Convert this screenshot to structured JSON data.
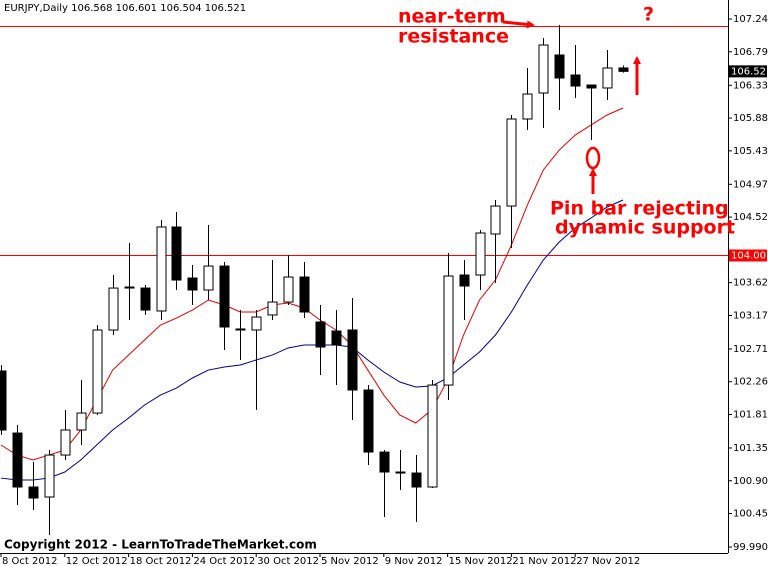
{
  "chart_data": {
    "type": "candlestick",
    "symbol": "EURJPY,Daily",
    "categories": [
      "8 Oct 2012",
      null,
      null,
      null,
      "12 Oct 2012",
      null,
      null,
      null,
      "18 Oct 2012",
      null,
      null,
      null,
      "24 Oct 2012",
      null,
      null,
      null,
      "30 Oct 2012",
      null,
      null,
      null,
      "5 Nov 2012",
      null,
      null,
      null,
      "9 Nov 2012",
      null,
      null,
      null,
      "15 Nov 2012",
      null,
      null,
      null,
      "21 Nov 2012",
      null,
      null,
      null,
      "27 Nov 2012",
      null,
      null,
      null
    ],
    "open": [
      102.407,
      101.555,
      100.814,
      100.677,
      101.253,
      101.597,
      101.83,
      102.97,
      103.546,
      103.546,
      103.231,
      104.384,
      103.684,
      103.519,
      103.848,
      102.984,
      102.97,
      103.176,
      103.354,
      103.697,
      103.08,
      102.956,
      102.97,
      102.146,
      101.294,
      101.02,
      101.006,
      100.814,
      102.214,
      103.725,
      103.725,
      104.288,
      104.672,
      105.867,
      106.224,
      106.746,
      106.471,
      106.334,
      106.293,
      106.568
    ],
    "high": [
      102.489,
      101.665,
      101.157,
      101.322,
      101.871,
      102.283,
      103.038,
      103.725,
      104.164,
      103.588,
      104.48,
      104.59,
      103.862,
      104.411,
      103.903,
      103.244,
      103.244,
      103.931,
      103.999,
      103.903,
      103.313,
      103.244,
      103.409,
      102.214,
      101.322,
      101.322,
      101.253,
      102.283,
      104.027,
      103.931,
      104.343,
      104.755,
      105.922,
      106.567,
      106.979,
      107.158,
      106.883,
      106.334,
      106.814,
      106.601
    ],
    "low": [
      101.528,
      100.567,
      100.498,
      100.155,
      101.185,
      101.391,
      101.803,
      102.901,
      103.107,
      103.176,
      103.107,
      103.519,
      103.313,
      103.382,
      102.695,
      102.558,
      101.873,
      103.107,
      103.313,
      103.134,
      102.352,
      102.214,
      101.734,
      101.116,
      100.402,
      100.773,
      100.333,
      100.8,
      102.009,
      103.107,
      103.519,
      103.615,
      104.096,
      105.716,
      105.743,
      105.99,
      106.155,
      105.579,
      106.128,
      106.504
    ],
    "close": [
      101.597,
      100.814,
      100.663,
      101.253,
      101.597,
      101.83,
      102.97,
      103.546,
      103.56,
      103.244,
      104.384,
      103.656,
      103.519,
      103.848,
      103.011,
      102.97,
      103.148,
      103.354,
      103.697,
      103.217,
      102.736,
      102.764,
      102.146,
      101.294,
      101.02,
      101.006,
      100.814,
      102.214,
      103.711,
      103.574,
      104.302,
      104.672,
      105.867,
      106.21,
      106.883,
      106.43,
      106.32,
      106.293,
      106.567,
      106.521
    ],
    "up_color": "#ffffff",
    "down_color": "#000000",
    "series": [
      {
        "color": "#e00000",
        "values": [
          101.391,
          101.253,
          101.185,
          101.253,
          101.322,
          101.597,
          102.008,
          102.42,
          102.626,
          102.832,
          103.038,
          103.134,
          103.244,
          103.382,
          103.313,
          103.217,
          103.217,
          103.313,
          103.34,
          103.272,
          103.107,
          102.97,
          102.764,
          102.42,
          102.077,
          101.803,
          101.693,
          101.871,
          102.283,
          102.901,
          103.382,
          103.656,
          104.137,
          104.686,
          105.167,
          105.441,
          105.647,
          105.785,
          105.922,
          106.018
        ]
      },
      {
        "color": "#00008b",
        "values": [
          100.937,
          100.91,
          100.91,
          100.937,
          101.02,
          101.185,
          101.391,
          101.597,
          101.761,
          101.94,
          102.077,
          102.173,
          102.311,
          102.42,
          102.462,
          102.489,
          102.558,
          102.626,
          102.723,
          102.764,
          102.764,
          102.764,
          102.736,
          102.558,
          102.393,
          102.256,
          102.187,
          102.201,
          102.311,
          102.489,
          102.668,
          102.901,
          103.217,
          103.588,
          103.931,
          104.178,
          104.37,
          104.508,
          104.659,
          104.755
        ]
      }
    ],
    "hlines": [
      {
        "value": 107.144,
        "color": "#ff0000"
      },
      {
        "value": 104.001,
        "color": "#ff0000",
        "labeled": true
      }
    ],
    "ylim": [
      99.908,
      107.501
    ],
    "yticks": [
      {
        "value": 107.24,
        "label": "107.240"
      },
      {
        "value": 106.79,
        "label": "106.790"
      },
      {
        "value": 106.33,
        "label": "106.330"
      },
      {
        "value": 105.88,
        "label": "105.880"
      },
      {
        "value": 105.43,
        "label": "105.430"
      },
      {
        "value": 104.97,
        "label": "104.970"
      },
      {
        "value": 104.52,
        "label": "104.520"
      },
      {
        "value": 103.62,
        "label": "103.620"
      },
      {
        "value": 103.17,
        "label": "103.170"
      },
      {
        "value": 102.71,
        "label": "102.710"
      },
      {
        "value": 102.26,
        "label": "102.260"
      },
      {
        "value": 101.81,
        "label": "101.810"
      },
      {
        "value": 101.35,
        "label": "101.350"
      },
      {
        "value": 100.9,
        "label": "100.900"
      },
      {
        "value": 100.45,
        "label": "100.450"
      },
      {
        "value": 99.99,
        "label": "99.990"
      }
    ],
    "annotations": {
      "resistance": [
        "near-term",
        "resistance"
      ],
      "question": "?",
      "pin_bar": [
        "Pin bar rejecting",
        "dynamic support"
      ]
    },
    "copyright": "Copyright 2012 - LearnToTradeTheMarket.com"
  }
}
